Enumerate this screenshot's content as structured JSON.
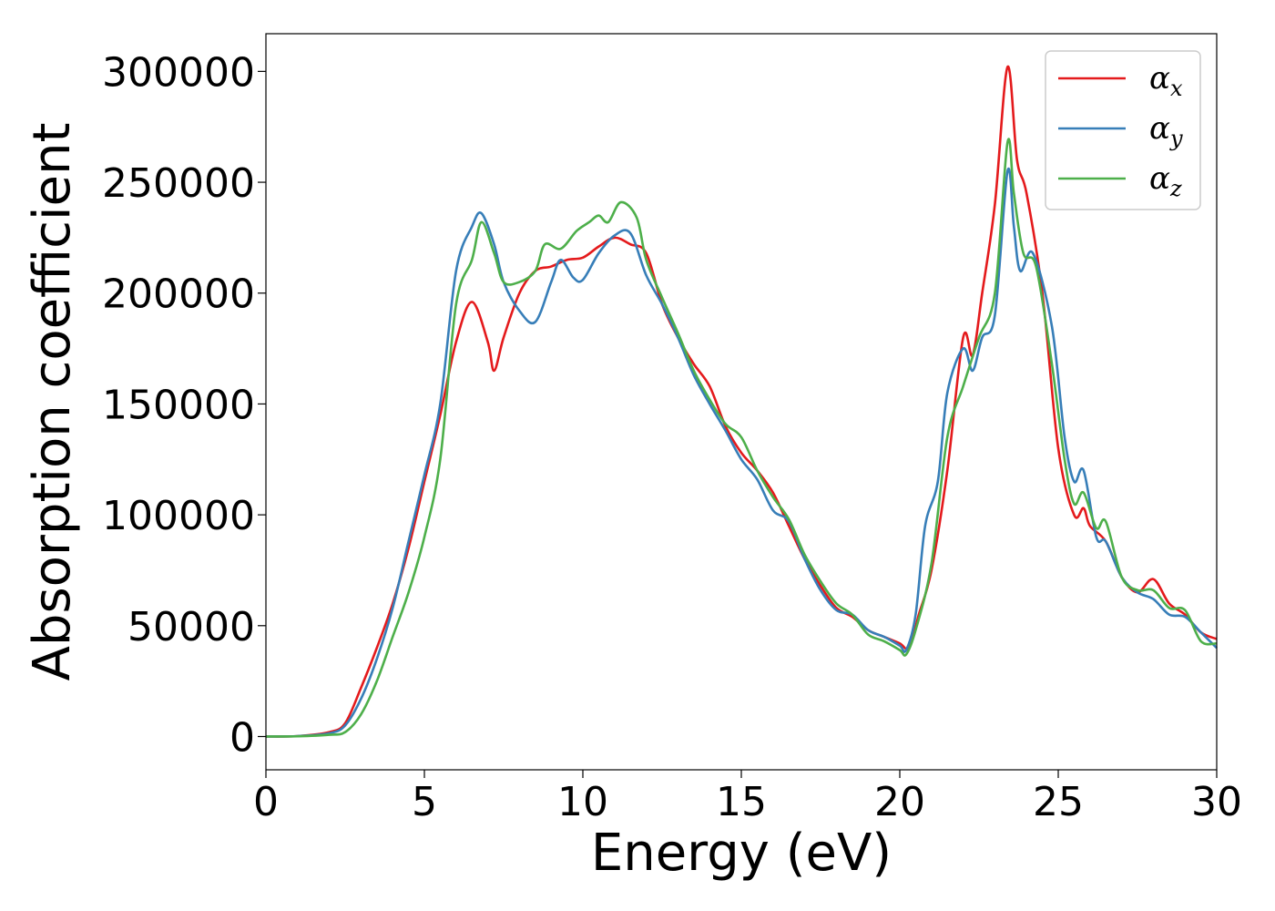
{
  "chart_data": {
    "type": "line",
    "xlabel": "Energy (eV)",
    "ylabel": "Absorption coefficient",
    "xlim": [
      0,
      30
    ],
    "ylim": [
      -15000,
      317000
    ],
    "xticks": [
      0,
      5,
      10,
      15,
      20,
      25,
      30
    ],
    "yticks": [
      0,
      50000,
      100000,
      150000,
      200000,
      250000,
      300000
    ],
    "grid": false,
    "legend_position": "top-right",
    "series": [
      {
        "name": "α_x",
        "label_base": "α",
        "label_sub": "x",
        "color": "#e41a1c",
        "points": [
          [
            0,
            0
          ],
          [
            1,
            200
          ],
          [
            2,
            2000
          ],
          [
            2.5,
            6000
          ],
          [
            3,
            22000
          ],
          [
            3.5,
            40000
          ],
          [
            4,
            60000
          ],
          [
            4.5,
            85000
          ],
          [
            5,
            115000
          ],
          [
            5.5,
            145000
          ],
          [
            6,
            178000
          ],
          [
            6.5,
            196000
          ],
          [
            7,
            178000
          ],
          [
            7.2,
            165000
          ],
          [
            7.5,
            180000
          ],
          [
            8,
            200000
          ],
          [
            8.5,
            210000
          ],
          [
            9,
            212000
          ],
          [
            9.5,
            215000
          ],
          [
            10,
            216000
          ],
          [
            10.5,
            221000
          ],
          [
            11,
            225000
          ],
          [
            11.5,
            222000
          ],
          [
            12,
            218000
          ],
          [
            12.5,
            195000
          ],
          [
            13,
            180000
          ],
          [
            13.5,
            168000
          ],
          [
            14,
            158000
          ],
          [
            14.5,
            140000
          ],
          [
            15,
            128000
          ],
          [
            15.5,
            120000
          ],
          [
            16,
            110000
          ],
          [
            16.5,
            95000
          ],
          [
            17,
            80000
          ],
          [
            17.5,
            68000
          ],
          [
            18,
            58000
          ],
          [
            18.5,
            54000
          ],
          [
            19,
            48000
          ],
          [
            19.5,
            45000
          ],
          [
            20,
            42000
          ],
          [
            20.3,
            40000
          ],
          [
            20.6,
            55000
          ],
          [
            21,
            75000
          ],
          [
            21.5,
            120000
          ],
          [
            22,
            180000
          ],
          [
            22.3,
            172000
          ],
          [
            22.6,
            200000
          ],
          [
            23,
            240000
          ],
          [
            23.4,
            302000
          ],
          [
            23.7,
            260000
          ],
          [
            24,
            245000
          ],
          [
            24.5,
            200000
          ],
          [
            25,
            130000
          ],
          [
            25.5,
            100000
          ],
          [
            25.8,
            103000
          ],
          [
            26,
            95000
          ],
          [
            26.5,
            88000
          ],
          [
            27,
            72000
          ],
          [
            27.5,
            65000
          ],
          [
            28,
            71000
          ],
          [
            28.5,
            60000
          ],
          [
            29,
            55000
          ],
          [
            29.5,
            47000
          ],
          [
            30,
            44000
          ]
        ]
      },
      {
        "name": "α_y",
        "label_base": "α",
        "label_sub": "y",
        "color": "#377eb8",
        "points": [
          [
            0,
            0
          ],
          [
            1,
            200
          ],
          [
            2,
            1500
          ],
          [
            2.5,
            5000
          ],
          [
            3,
            17000
          ],
          [
            3.5,
            35000
          ],
          [
            4,
            58000
          ],
          [
            4.5,
            88000
          ],
          [
            5,
            118000
          ],
          [
            5.5,
            150000
          ],
          [
            6,
            210000
          ],
          [
            6.5,
            230000
          ],
          [
            6.8,
            236000
          ],
          [
            7.2,
            222000
          ],
          [
            7.5,
            205000
          ],
          [
            8,
            192000
          ],
          [
            8.5,
            187000
          ],
          [
            9,
            205000
          ],
          [
            9.3,
            215000
          ],
          [
            9.7,
            207000
          ],
          [
            10,
            206000
          ],
          [
            10.5,
            218000
          ],
          [
            11,
            226000
          ],
          [
            11.5,
            227000
          ],
          [
            12,
            208000
          ],
          [
            12.5,
            195000
          ],
          [
            13,
            180000
          ],
          [
            13.5,
            163000
          ],
          [
            14,
            150000
          ],
          [
            14.5,
            138000
          ],
          [
            15,
            125000
          ],
          [
            15.5,
            116000
          ],
          [
            16,
            102000
          ],
          [
            16.5,
            97000
          ],
          [
            17,
            80000
          ],
          [
            17.5,
            66000
          ],
          [
            18,
            57000
          ],
          [
            18.5,
            55000
          ],
          [
            19,
            48000
          ],
          [
            19.5,
            45000
          ],
          [
            20,
            41000
          ],
          [
            20.2,
            39000
          ],
          [
            20.5,
            55000
          ],
          [
            20.8,
            95000
          ],
          [
            21.2,
            115000
          ],
          [
            21.5,
            155000
          ],
          [
            22,
            175000
          ],
          [
            22.3,
            165000
          ],
          [
            22.6,
            180000
          ],
          [
            23,
            190000
          ],
          [
            23.4,
            255000
          ],
          [
            23.6,
            230000
          ],
          [
            23.8,
            210000
          ],
          [
            24.2,
            218000
          ],
          [
            24.8,
            185000
          ],
          [
            25.2,
            135000
          ],
          [
            25.5,
            115000
          ],
          [
            25.8,
            120000
          ],
          [
            26.2,
            90000
          ],
          [
            26.5,
            88000
          ],
          [
            27,
            72000
          ],
          [
            27.5,
            65000
          ],
          [
            28,
            62000
          ],
          [
            28.5,
            55000
          ],
          [
            29,
            54000
          ],
          [
            29.5,
            47000
          ],
          [
            30,
            40000
          ]
        ]
      },
      {
        "name": "α_z",
        "label_base": "α",
        "label_sub": "z",
        "color": "#4daf4a",
        "points": [
          [
            0,
            0
          ],
          [
            1,
            100
          ],
          [
            2,
            800
          ],
          [
            2.5,
            2000
          ],
          [
            3,
            10000
          ],
          [
            3.5,
            25000
          ],
          [
            4,
            45000
          ],
          [
            4.5,
            65000
          ],
          [
            5,
            90000
          ],
          [
            5.5,
            125000
          ],
          [
            6,
            195000
          ],
          [
            6.5,
            215000
          ],
          [
            6.8,
            232000
          ],
          [
            7.2,
            218000
          ],
          [
            7.5,
            205000
          ],
          [
            8,
            205000
          ],
          [
            8.5,
            210000
          ],
          [
            8.8,
            222000
          ],
          [
            9.3,
            220000
          ],
          [
            9.8,
            228000
          ],
          [
            10.2,
            232000
          ],
          [
            10.5,
            235000
          ],
          [
            10.8,
            232000
          ],
          [
            11.2,
            241000
          ],
          [
            11.7,
            234000
          ],
          [
            12,
            215000
          ],
          [
            12.5,
            198000
          ],
          [
            13,
            182000
          ],
          [
            13.5,
            165000
          ],
          [
            14,
            152000
          ],
          [
            14.5,
            141000
          ],
          [
            15,
            135000
          ],
          [
            15.5,
            120000
          ],
          [
            16,
            108000
          ],
          [
            16.5,
            98000
          ],
          [
            17,
            82000
          ],
          [
            17.5,
            70000
          ],
          [
            18,
            60000
          ],
          [
            18.5,
            55000
          ],
          [
            19,
            46000
          ],
          [
            19.5,
            43000
          ],
          [
            20,
            39000
          ],
          [
            20.2,
            37000
          ],
          [
            20.5,
            48000
          ],
          [
            21,
            78000
          ],
          [
            21.5,
            135000
          ],
          [
            22,
            158000
          ],
          [
            22.5,
            180000
          ],
          [
            23,
            200000
          ],
          [
            23.4,
            268000
          ],
          [
            23.6,
            245000
          ],
          [
            23.9,
            218000
          ],
          [
            24.3,
            212000
          ],
          [
            24.8,
            168000
          ],
          [
            25.2,
            125000
          ],
          [
            25.5,
            105000
          ],
          [
            25.8,
            110000
          ],
          [
            26.2,
            94000
          ],
          [
            26.5,
            97000
          ],
          [
            27,
            72000
          ],
          [
            27.5,
            66000
          ],
          [
            28,
            66000
          ],
          [
            28.5,
            58000
          ],
          [
            29,
            57000
          ],
          [
            29.5,
            43000
          ],
          [
            30,
            42000
          ]
        ]
      }
    ]
  }
}
